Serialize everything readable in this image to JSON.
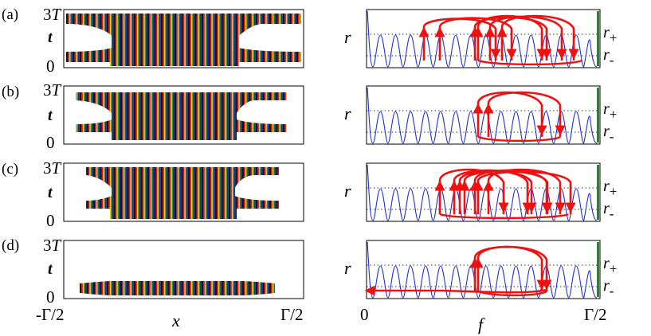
{
  "panels": [
    {
      "label": "(a)",
      "space_time": "three-bursts-long-tails",
      "loops": [
        600,
        622,
        642,
        686,
        705,
        720
      ]
    },
    {
      "label": "(b)",
      "space_time": "three-bursts-short-tails",
      "loops": [
        600,
        703
      ]
    },
    {
      "label": "(c)",
      "space_time": "three-bursts-mid-tails",
      "loops": [
        552,
        570,
        583,
        600,
        667,
        686,
        703
      ]
    },
    {
      "label": "(d)",
      "space_time": "single-burst",
      "loops": [
        600,
        686
      ],
      "entry_line": true
    }
  ],
  "left_axis": {
    "y_top_tick": "3T",
    "y_top_tick_main": "3",
    "y_top_tick_italic": "T",
    "y_bottom_tick": "0",
    "y_label": "t",
    "x_left_tick": "-Γ/2",
    "x_right_tick": "Γ/2",
    "x_label": "x"
  },
  "right_axis": {
    "y_label": "r",
    "r_plus": "r+",
    "r_plus_main": "r",
    "r_plus_sub": "+",
    "r_minus": "r-",
    "r_minus_main": "r",
    "r_minus_sub": "-",
    "x_left_tick": "0",
    "x_right_tick": "Γ/2",
    "x_label": "f"
  },
  "colors": {
    "stripes": [
      "#d8141c",
      "#e6d41e",
      "#2b9a3e",
      "#1b2fa0",
      "#141414"
    ],
    "curve": "#2233cc",
    "loops": "#ee1111",
    "edge_bar": "#1f8a2c",
    "frame": "#000000"
  }
}
